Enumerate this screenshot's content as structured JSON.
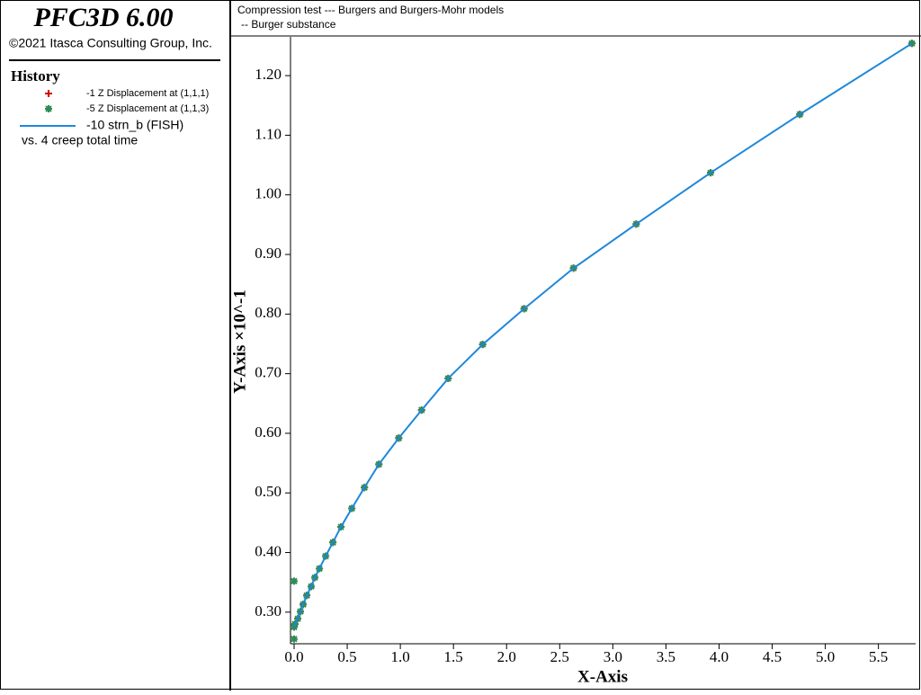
{
  "app": {
    "title": "PFC3D 6.00",
    "copyright": "©2021 Itasca Consulting Group, Inc.",
    "panel_title": "History"
  },
  "chart_data": {
    "type": "line",
    "title": "Compression test --- Burgers and Burgers-Mohr models",
    "subtitle": "-- Burger substance",
    "x_label": "X-Axis",
    "y_label": "Y-Axis ×10^-1",
    "legend_footer": "vs. 4 creep total time",
    "xlim": [
      0,
      5.85
    ],
    "ylim": [
      0.247,
      1.265
    ],
    "xticks": [
      {
        "value": 0,
        "label": "0.0"
      },
      {
        "value": 0.5,
        "label": "0.5"
      },
      {
        "value": 1,
        "label": "1.0"
      },
      {
        "value": 1.5,
        "label": "1.5"
      },
      {
        "value": 2,
        "label": "2.0"
      },
      {
        "value": 2.5,
        "label": "2.5"
      },
      {
        "value": 3,
        "label": "3.0"
      },
      {
        "value": 3.5,
        "label": "3.5"
      },
      {
        "value": 4,
        "label": "4.0"
      },
      {
        "value": 4.5,
        "label": "4.5"
      },
      {
        "value": 5,
        "label": "5.0"
      },
      {
        "value": 5.5,
        "label": "5.5"
      }
    ],
    "yticks": [
      {
        "value": 0.3,
        "label": "0.30"
      },
      {
        "value": 0.4,
        "label": "0.40"
      },
      {
        "value": 0.5,
        "label": "0.50"
      },
      {
        "value": 0.6,
        "label": "0.60"
      },
      {
        "value": 0.7,
        "label": "0.70"
      },
      {
        "value": 0.8,
        "label": "0.80"
      },
      {
        "value": 0.9,
        "label": "0.90"
      },
      {
        "value": 1,
        "label": "1.00"
      },
      {
        "value": 1.1,
        "label": "1.10"
      },
      {
        "value": 1.2,
        "label": "1.20"
      }
    ],
    "series": [
      {
        "name": "-1 Z Displacement at (1,1,1)",
        "color": "#d40000",
        "marker": "plus",
        "x": [
          0,
          0.008,
          0.034,
          0.059,
          0.085,
          0.119,
          0.161,
          0.195,
          0.238,
          0.297,
          0.365,
          0.441,
          0.543,
          0.662,
          0.798,
          0.985,
          1.2,
          1.45,
          1.775,
          2.165,
          2.63,
          3.22,
          3.92,
          4.76,
          5.815
        ],
        "values": [
          0.275,
          0.28,
          0.289,
          0.301,
          0.313,
          0.328,
          0.343,
          0.358,
          0.373,
          0.394,
          0.417,
          0.443,
          0.474,
          0.509,
          0.548,
          0.592,
          0.639,
          0.692,
          0.749,
          0.809,
          0.877,
          0.951,
          1.037,
          1.135,
          1.254
        ]
      },
      {
        "name": "-5 Z Displacement at (1,1,3)",
        "color": "#2e8b57",
        "marker": "asterisk",
        "x": [
          0,
          0,
          0,
          0.008,
          0.034,
          0.059,
          0.085,
          0.119,
          0.161,
          0.195,
          0.238,
          0.297,
          0.365,
          0.441,
          0.543,
          0.662,
          0.798,
          0.985,
          1.2,
          1.45,
          1.775,
          2.165,
          2.63,
          3.22,
          3.92,
          4.76,
          5.815
        ],
        "values": [
          0.352,
          0.255,
          0.275,
          0.28,
          0.289,
          0.301,
          0.313,
          0.328,
          0.343,
          0.358,
          0.373,
          0.394,
          0.417,
          0.443,
          0.474,
          0.509,
          0.548,
          0.592,
          0.639,
          0.692,
          0.749,
          0.809,
          0.877,
          0.951,
          1.037,
          1.135,
          1.254
        ]
      },
      {
        "name": "-10 strn_b (FISH)",
        "color": "#1e88d8",
        "marker": "line",
        "x": [
          0,
          0.008,
          0.034,
          0.059,
          0.085,
          0.119,
          0.161,
          0.195,
          0.238,
          0.297,
          0.365,
          0.441,
          0.543,
          0.662,
          0.798,
          0.985,
          1.2,
          1.45,
          1.775,
          2.165,
          2.63,
          3.22,
          3.92,
          4.76,
          5.815
        ],
        "values": [
          0.275,
          0.28,
          0.289,
          0.301,
          0.313,
          0.328,
          0.343,
          0.358,
          0.373,
          0.394,
          0.417,
          0.443,
          0.474,
          0.509,
          0.548,
          0.592,
          0.639,
          0.692,
          0.749,
          0.809,
          0.877,
          0.951,
          1.037,
          1.135,
          1.254
        ]
      }
    ]
  }
}
